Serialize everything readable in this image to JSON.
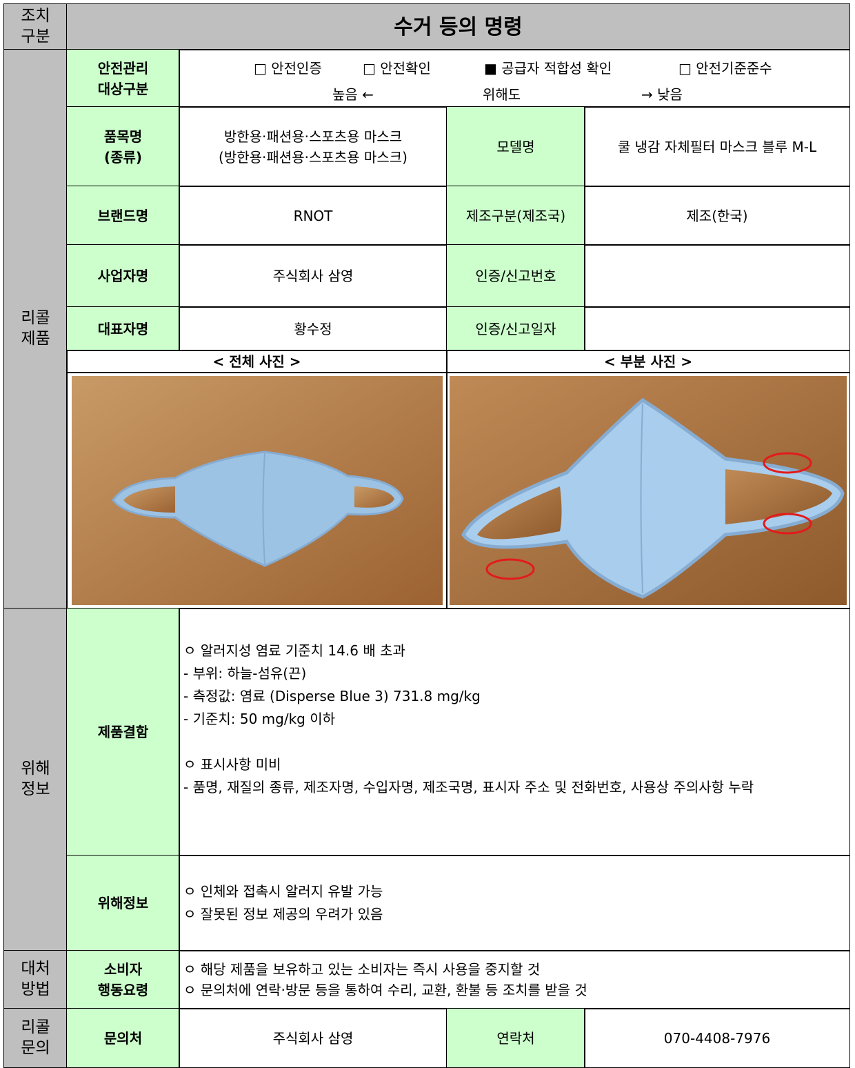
{
  "header": {
    "section": [
      "조치",
      "구분"
    ],
    "title": "수거 등의 명령"
  },
  "recall_product": {
    "section": [
      "리콜",
      "제품"
    ],
    "safety_category": {
      "label": [
        "안전관리",
        "대상구분"
      ],
      "options": [
        "□ 안전인증",
        "□ 안전확인",
        "■ 공급자 적합성 확인",
        "□ 안전기준준수"
      ],
      "scale": [
        "높음 ←",
        "위해도",
        "→ 낮음"
      ]
    },
    "rows": [
      {
        "label": [
          "품목명",
          "(종류)"
        ],
        "value": [
          "방한용·패션용·스포츠용 마스크",
          "(방한용·패션용·스포츠용 마스크)"
        ],
        "label2": "모델명",
        "value2": "쿨 냉감 자체필터 마스크 블루 M-L"
      },
      {
        "label": [
          "브랜드명"
        ],
        "value": [
          "RNOT"
        ],
        "label2": "제조구분(제조국)",
        "value2": "제조(한국)"
      },
      {
        "label": [
          "사업자명"
        ],
        "value": [
          "주식회사 삼영"
        ],
        "label2": "인증/신고번호"
      },
      {
        "label": [
          "대표자명"
        ],
        "value": [
          "황수정"
        ],
        "label2": "인증/신고일자"
      }
    ],
    "photo_captions": [
      "< 전체 사진 >",
      "< 부분 사진 >"
    ]
  },
  "hazard_info": {
    "section": [
      "위해",
      "정보"
    ],
    "defect": {
      "label": "제품결함",
      "groups": [
        [
          "ㅇ 알러지성 염료 기준치 14.6 배 초과",
          " - 부위: 하늘-섬유(끈)",
          " - 측정값: 염료 (Disperse Blue 3) 731.8 mg/kg",
          " - 기준치: 50 mg/kg 이하"
        ],
        [
          "ㅇ 표시사항 미비",
          " - 품명, 재질의 종류, 제조자명, 수입자명, 제조국명, 표시자 주소 및 전화번호, 사용상 주의사항 누락"
        ]
      ]
    },
    "hazard": {
      "label": "위해정보",
      "lines": [
        "ㅇ 인체와 접촉시 알러지 유발 가능",
        "ㅇ 잘못된 정보 제공의 우려가 있음"
      ]
    }
  },
  "remedy": {
    "section": [
      "대처",
      "방법"
    ],
    "label": [
      "소비자",
      "행동요령"
    ],
    "lines": [
      "ㅇ 해당 제품을 보유하고 있는 소비자는 즉시 사용을 중지할 것",
      "ㅇ 문의처에 연락·방문 등을 통하여 수리, 교환, 환불 등 조치를 받을 것"
    ]
  },
  "contact": {
    "section": [
      "리콜",
      "문의"
    ],
    "label": "문의처",
    "value": "주식회사 삼영",
    "label2": "연락처",
    "value2": "070-4408-7976"
  }
}
